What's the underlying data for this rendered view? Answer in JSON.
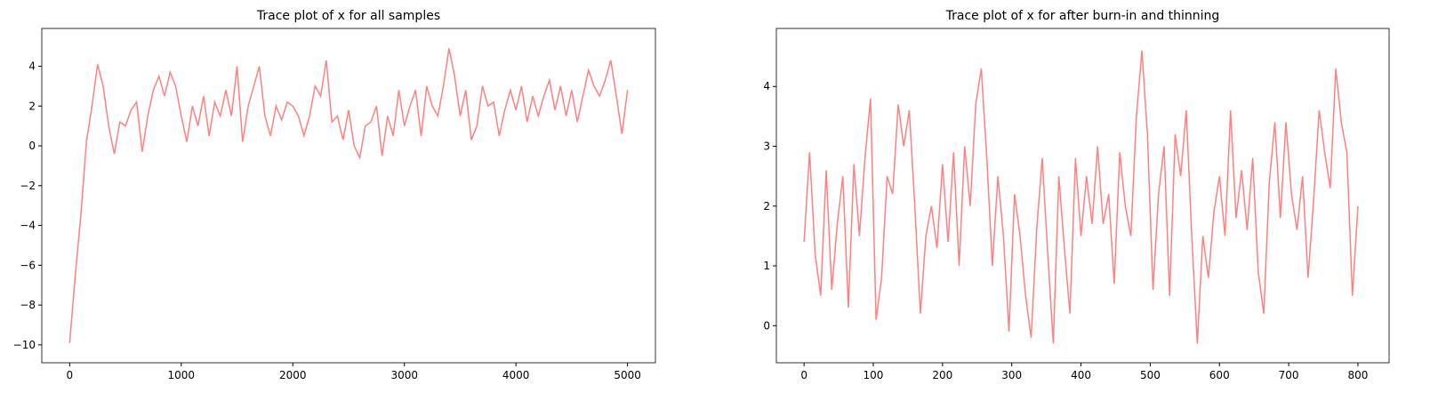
{
  "chart_data": [
    {
      "type": "line",
      "title": "Trace plot of x for all samples",
      "color": "#ff8080",
      "x": [
        0,
        50,
        100,
        150,
        200,
        250,
        300,
        350,
        400,
        450,
        500,
        550,
        600,
        650,
        700,
        750,
        800,
        850,
        900,
        950,
        1000,
        1050,
        1100,
        1150,
        1200,
        1250,
        1300,
        1350,
        1400,
        1450,
        1500,
        1550,
        1600,
        1650,
        1700,
        1750,
        1800,
        1850,
        1900,
        1950,
        2000,
        2050,
        2100,
        2150,
        2200,
        2250,
        2300,
        2350,
        2400,
        2450,
        2500,
        2550,
        2600,
        2650,
        2700,
        2750,
        2800,
        2850,
        2900,
        2950,
        3000,
        3050,
        3100,
        3150,
        3200,
        3250,
        3300,
        3350,
        3400,
        3450,
        3500,
        3550,
        3600,
        3650,
        3700,
        3750,
        3800,
        3850,
        3900,
        3950,
        4000,
        4050,
        4100,
        4150,
        4200,
        4250,
        4300,
        4350,
        4400,
        4450,
        4500,
        4550,
        4600,
        4650,
        4700,
        4750,
        4800,
        4850,
        4900,
        4950,
        5000
      ],
      "values": [
        -9.9,
        -6.5,
        -3.5,
        0.2,
        2,
        4.1,
        3,
        1,
        -0.4,
        1.2,
        1,
        1.8,
        2.2,
        -0.3,
        1.5,
        2.8,
        3.5,
        2.5,
        3.7,
        3,
        1.5,
        0.2,
        2,
        1,
        2.5,
        0.5,
        2.2,
        1.5,
        2.8,
        1.5,
        4,
        0.2,
        2,
        3,
        4,
        1.5,
        0.5,
        2,
        1.3,
        2.2,
        2,
        1.5,
        0.5,
        1.5,
        3,
        2.5,
        4.3,
        1.2,
        1.5,
        0.3,
        1.8,
        0,
        -0.6,
        1,
        1.2,
        2,
        -0.5,
        1.5,
        0.5,
        2.8,
        1,
        2,
        2.8,
        0.5,
        3,
        2,
        1.5,
        3,
        4.9,
        3.5,
        1.5,
        2.8,
        0.3,
        1,
        3,
        2,
        2.2,
        0.5,
        1.8,
        2.8,
        1.8,
        3,
        1.2,
        2.5,
        1.5,
        2.5,
        3.3,
        1.8,
        3,
        1.5,
        2.8,
        1.2,
        2.5,
        3.8,
        3,
        2.5,
        3.3,
        4.3,
        2.5,
        0.6,
        2.8
      ],
      "xlim": [
        -250,
        5250
      ],
      "ylim": [
        -10.9,
        5.9
      ],
      "xticks": [
        0,
        1000,
        2000,
        3000,
        4000,
        5000
      ],
      "yticks": [
        {
          "value": -10,
          "label": "−10"
        },
        {
          "value": -8,
          "label": "−8"
        },
        {
          "value": -6,
          "label": "−6"
        },
        {
          "value": -4,
          "label": "−4"
        },
        {
          "value": -2,
          "label": "−2"
        },
        0,
        2,
        4
      ]
    },
    {
      "type": "line",
      "title": "Trace plot of x for after burn-in and thinning",
      "color": "#ff8080",
      "x": [
        0,
        8,
        16,
        24,
        32,
        40,
        48,
        56,
        64,
        72,
        80,
        88,
        96,
        104,
        112,
        120,
        128,
        136,
        144,
        152,
        160,
        168,
        176,
        184,
        192,
        200,
        208,
        216,
        224,
        232,
        240,
        248,
        256,
        264,
        272,
        280,
        288,
        296,
        304,
        312,
        320,
        328,
        336,
        344,
        352,
        360,
        368,
        376,
        384,
        392,
        400,
        408,
        416,
        424,
        432,
        440,
        448,
        456,
        464,
        472,
        480,
        488,
        496,
        504,
        512,
        520,
        528,
        536,
        544,
        552,
        560,
        568,
        576,
        584,
        592,
        600,
        608,
        616,
        624,
        632,
        640,
        648,
        656,
        664,
        672,
        680,
        688,
        696,
        704,
        712,
        720,
        728,
        736,
        744,
        752,
        760,
        768,
        776,
        784,
        792,
        800
      ],
      "values": [
        1.4,
        2.9,
        1.2,
        0.5,
        2.6,
        0.6,
        1.7,
        2.5,
        0.3,
        2.7,
        1.5,
        2.8,
        3.8,
        0.1,
        0.8,
        2.5,
        2.2,
        3.7,
        3,
        3.6,
        2,
        0.2,
        1.5,
        2,
        1.3,
        2.7,
        1.4,
        2.9,
        1,
        3,
        2,
        3.7,
        4.3,
        2.8,
        1,
        2.5,
        1.5,
        -0.1,
        2.2,
        1.5,
        0.5,
        -0.2,
        1.6,
        2.8,
        1.2,
        -0.3,
        2.5,
        1.3,
        0.2,
        2.8,
        1.5,
        2.5,
        1.7,
        3,
        1.7,
        2.2,
        0.7,
        2.9,
        2,
        1.5,
        3.5,
        4.6,
        3.2,
        0.6,
        2.2,
        3,
        0.5,
        3.2,
        2.5,
        3.6,
        1.5,
        -0.3,
        1.5,
        0.8,
        1.9,
        2.5,
        1.5,
        3.6,
        1.8,
        2.6,
        1.6,
        2.8,
        0.9,
        0.2,
        2.4,
        3.4,
        1.8,
        3.4,
        2.2,
        1.6,
        2.5,
        0.8,
        2.1,
        3.6,
        2.9,
        2.3,
        4.3,
        3.4,
        2.9,
        0.5,
        2
      ],
      "xlim": [
        -40,
        845
      ],
      "ylim": [
        -0.62,
        4.97
      ],
      "xticks": [
        0,
        100,
        200,
        300,
        400,
        500,
        600,
        700,
        800
      ],
      "yticks": [
        0,
        1,
        2,
        3,
        4
      ]
    }
  ]
}
